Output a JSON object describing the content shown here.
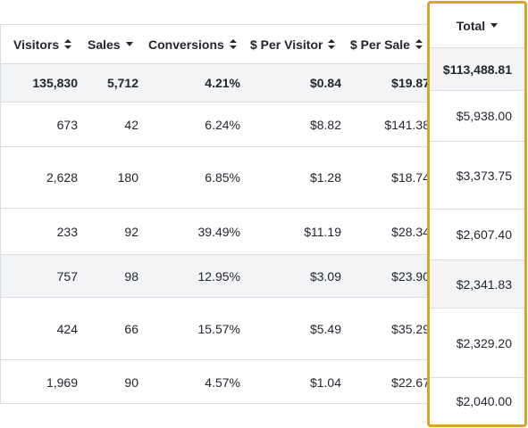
{
  "columns": {
    "visitors": "Visitors",
    "sales": "Sales",
    "conversions": "Conversions",
    "per_visitor": "$ Per Visitor",
    "per_sale": "$ Per Sale",
    "total": "Total"
  },
  "totals_row": {
    "visitors": "135,830",
    "sales": "5,712",
    "conversions": "4.21%",
    "per_visitor": "$0.84",
    "per_sale": "$19.87",
    "total": "$113,488.81"
  },
  "rows": [
    {
      "visitors": "673",
      "sales": "42",
      "conversions": "6.24%",
      "per_visitor": "$8.82",
      "per_sale": "$141.38",
      "total": "$5,938.00"
    },
    {
      "visitors": "2,628",
      "sales": "180",
      "conversions": "6.85%",
      "per_visitor": "$1.28",
      "per_sale": "$18.74",
      "total": "$3,373.75"
    },
    {
      "visitors": "233",
      "sales": "92",
      "conversions": "39.49%",
      "per_visitor": "$11.19",
      "per_sale": "$28.34",
      "total": "$2,607.40"
    },
    {
      "visitors": "757",
      "sales": "98",
      "conversions": "12.95%",
      "per_visitor": "$3.09",
      "per_sale": "$23.90",
      "total": "$2,341.83"
    },
    {
      "visitors": "424",
      "sales": "66",
      "conversions": "15.57%",
      "per_visitor": "$5.49",
      "per_sale": "$35.29",
      "total": "$2,329.20"
    },
    {
      "visitors": "1,969",
      "sales": "90",
      "conversions": "4.57%",
      "per_visitor": "$1.04",
      "per_sale": "$22.67",
      "total": "$2,040.00"
    }
  ],
  "colors": {
    "highlight_border": "#d4a72c",
    "row_shade": "#f3f4f6",
    "border": "#dadde3",
    "text": "#23262f"
  },
  "icons": {
    "sort": "sort-arrows-icon",
    "sorted_desc": "caret-down-icon"
  }
}
